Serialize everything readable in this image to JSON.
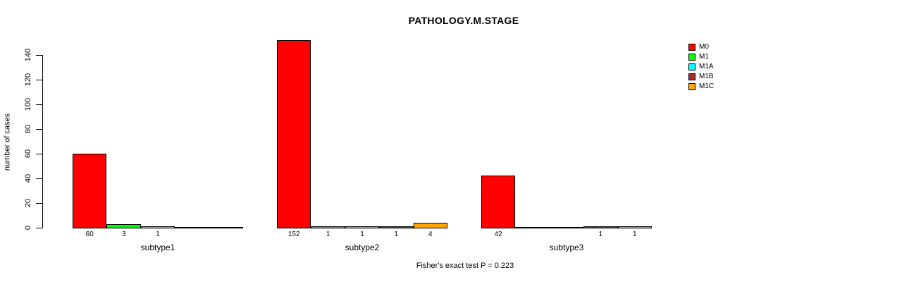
{
  "chart_data": {
    "type": "bar",
    "title": "PATHOLOGY.M.STAGE",
    "ylabel": "number of cases",
    "footnote": "Fisher's exact test P = 0.223",
    "ylim": [
      0,
      152
    ],
    "yticks": [
      0,
      20,
      40,
      60,
      80,
      100,
      120,
      140
    ],
    "grid": false,
    "legend_position": "top-right",
    "background_color": "#ffffff",
    "bar_border_color": "#000000",
    "categories": [
      "M0",
      "M1",
      "M1A",
      "M1B",
      "M1C"
    ],
    "legend": [
      {
        "label": "M0",
        "color": "#ff0000"
      },
      {
        "label": "M1",
        "color": "#00ff00"
      },
      {
        "label": "M1A",
        "color": "#00ffff"
      },
      {
        "label": "M1B",
        "color": "#a52a2a"
      },
      {
        "label": "M1C",
        "color": "#ffa500"
      }
    ],
    "groups": [
      {
        "label": "subtype1",
        "values": [
          60,
          3,
          1,
          0,
          0
        ]
      },
      {
        "label": "subtype2",
        "values": [
          152,
          1,
          1,
          1,
          4
        ]
      },
      {
        "label": "subtype3",
        "values": [
          42,
          0,
          0,
          1,
          1
        ]
      }
    ]
  }
}
